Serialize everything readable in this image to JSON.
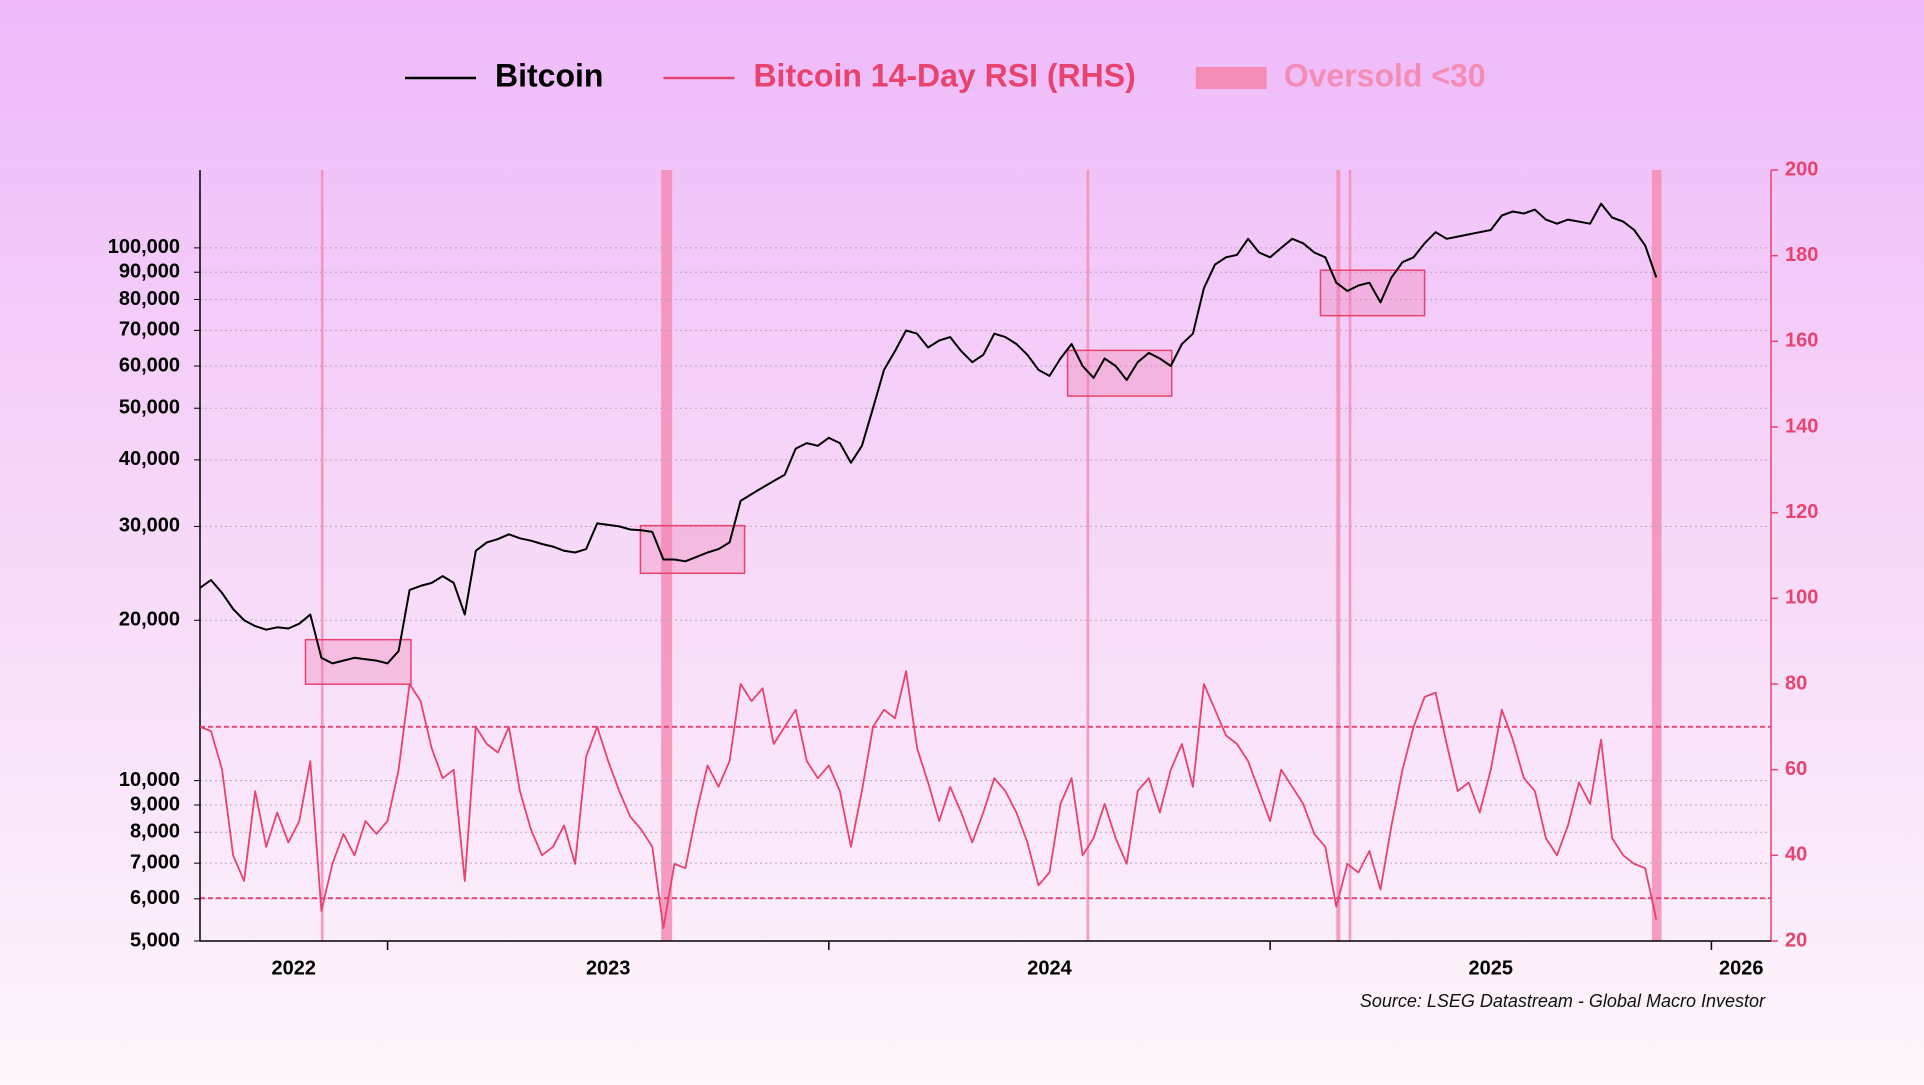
{
  "chart_data": {
    "type": "line",
    "x": [
      2022.575,
      2022.6,
      2022.625,
      2022.65,
      2022.675,
      2022.7,
      2022.725,
      2022.75,
      2022.775,
      2022.8,
      2022.825,
      2022.85,
      2022.875,
      2022.9,
      2022.925,
      2022.95,
      2022.975,
      2023,
      2023.025,
      2023.05,
      2023.075,
      2023.1,
      2023.125,
      2023.15,
      2023.175,
      2023.2,
      2023.225,
      2023.25,
      2023.275,
      2023.3,
      2023.325,
      2023.35,
      2023.375,
      2023.4,
      2023.425,
      2023.45,
      2023.475,
      2023.5,
      2023.525,
      2023.55,
      2023.575,
      2023.6,
      2023.625,
      2023.65,
      2023.675,
      2023.7,
      2023.725,
      2023.75,
      2023.775,
      2023.8,
      2023.825,
      2023.85,
      2023.875,
      2023.9,
      2023.925,
      2023.95,
      2023.975,
      2024,
      2024.025,
      2024.05,
      2024.075,
      2024.1,
      2024.125,
      2024.15,
      2024.175,
      2024.2,
      2024.225,
      2024.25,
      2024.275,
      2024.3,
      2024.325,
      2024.35,
      2024.375,
      2024.4,
      2024.425,
      2024.45,
      2024.475,
      2024.5,
      2024.525,
      2024.55,
      2024.575,
      2024.6,
      2024.625,
      2024.65,
      2024.675,
      2024.7,
      2024.725,
      2024.75,
      2024.775,
      2024.8,
      2024.825,
      2024.85,
      2024.875,
      2024.9,
      2024.925,
      2024.95,
      2024.975,
      2025,
      2025.025,
      2025.05,
      2025.075,
      2025.1,
      2025.125,
      2025.15,
      2025.175,
      2025.2,
      2025.225,
      2025.25,
      2025.275,
      2025.3,
      2025.325,
      2025.35,
      2025.375,
      2025.4,
      2025.425,
      2025.45,
      2025.475,
      2025.5,
      2025.525,
      2025.55,
      2025.575,
      2025.6,
      2025.625,
      2025.65,
      2025.675,
      2025.7,
      2025.725,
      2025.75,
      2025.775,
      2025.8,
      2025.825,
      2025.85,
      2025.875
    ],
    "series": [
      {
        "name": "Bitcoin",
        "color": "#000000",
        "axis": "y",
        "values": [
          23000,
          23800,
          22500,
          21000,
          20000,
          19500,
          19200,
          19400,
          19300,
          19700,
          20500,
          17000,
          16600,
          16800,
          17000,
          16900,
          16800,
          16600,
          17500,
          22800,
          23200,
          23500,
          24200,
          23500,
          20500,
          27000,
          28000,
          28400,
          29000,
          28500,
          28200,
          27800,
          27500,
          27000,
          26800,
          27200,
          30400,
          30200,
          30000,
          29600,
          29500,
          29300,
          26000,
          26000,
          25800,
          26300,
          26800,
          27200,
          28000,
          33500,
          34500,
          35500,
          36500,
          37500,
          42000,
          43000,
          42500,
          44000,
          43000,
          39500,
          42500,
          50000,
          59000,
          64000,
          70000,
          69000,
          65000,
          67000,
          68000,
          64000,
          61000,
          63000,
          69000,
          68000,
          66000,
          63000,
          59000,
          57500,
          62000,
          66000,
          60000,
          57000,
          62000,
          60000,
          56500,
          61000,
          63500,
          62000,
          60000,
          66000,
          69000,
          84000,
          93000,
          96000,
          97000,
          104000,
          98000,
          96000,
          100000,
          104000,
          102000,
          98000,
          96000,
          86000,
          83000,
          85000,
          86000,
          79000,
          88000,
          94000,
          96000,
          102000,
          107000,
          104000,
          105000,
          106000,
          107000,
          108000,
          115000,
          117000,
          116000,
          118000,
          113000,
          111000,
          113000,
          112000,
          111000,
          121000,
          114000,
          112000,
          108000,
          101000,
          88000
        ]
      },
      {
        "name": "Bitcoin 14-Day RSI (RHS)",
        "color": "#e8436f",
        "axis": "y2",
        "values": [
          70,
          69,
          60,
          40,
          34,
          55,
          42,
          50,
          43,
          48,
          62,
          27,
          38,
          45,
          40,
          48,
          45,
          48,
          60,
          80,
          76,
          65,
          58,
          60,
          34,
          70,
          66,
          64,
          70,
          55,
          46,
          40,
          42,
          47,
          38,
          63,
          70,
          62,
          55,
          49,
          46,
          42,
          23,
          38,
          37,
          50,
          61,
          56,
          62,
          80,
          76,
          79,
          66,
          70,
          74,
          62,
          58,
          61,
          55,
          42,
          55,
          70,
          74,
          72,
          83,
          65,
          57,
          48,
          56,
          50,
          43,
          50,
          58,
          55,
          50,
          43,
          33,
          36,
          52,
          58,
          40,
          44,
          52,
          44,
          38,
          55,
          58,
          50,
          60,
          66,
          56,
          80,
          74,
          68,
          66,
          62,
          55,
          48,
          60,
          56,
          52,
          45,
          42,
          28,
          38,
          36,
          41,
          32,
          47,
          60,
          70,
          77,
          78,
          66,
          55,
          57,
          50,
          60,
          74,
          67,
          58,
          55,
          44,
          40,
          47,
          57,
          52,
          67,
          44,
          40,
          38,
          37,
          25
        ]
      }
    ],
    "oversold": {
      "name": "Oversold <30",
      "color": "#f48db6",
      "ranges": [
        [
          2022.849,
          2022.855
        ],
        [
          2023.62,
          2023.645
        ],
        [
          2024.584,
          2024.59
        ],
        [
          2025.15,
          2025.159
        ],
        [
          2025.178,
          2025.184
        ],
        [
          2025.865,
          2025.887
        ]
      ]
    },
    "reference_lines": {
      "axis": "y2",
      "color": "#e8436f",
      "values": [
        70,
        30
      ]
    },
    "boxes": [
      {
        "x": [
          2022.814,
          2023.053
        ],
        "y": [
          15170,
          18390
        ]
      },
      {
        "x": [
          2023.573,
          2023.809
        ],
        "y": [
          24500,
          30100
        ]
      },
      {
        "x": [
          2024.541,
          2024.777
        ],
        "y": [
          52700,
          64200
        ]
      },
      {
        "x": [
          2025.114,
          2025.35
        ],
        "y": [
          74600,
          90800
        ]
      }
    ],
    "xlim": [
      2022.575,
      2026.135
    ],
    "xticks": [
      2023,
      2024,
      2025,
      2026
    ],
    "xtick_labels": [
      2022,
      2023,
      2024,
      2025,
      2026
    ],
    "ylim": [
      5000,
      140000
    ],
    "log_y": true,
    "yticks": [
      {
        "value": 5000,
        "label": "5,000"
      },
      {
        "value": 6000,
        "label": "6,000"
      },
      {
        "value": 7000,
        "label": "7,000"
      },
      {
        "value": 8000,
        "label": "8,000"
      },
      {
        "value": 9000,
        "label": "9,000"
      },
      {
        "value": 10000,
        "label": "10,000"
      },
      {
        "value": 20000,
        "label": "20,000"
      },
      {
        "value": 30000,
        "label": "30,000"
      },
      {
        "value": 40000,
        "label": "40,000"
      },
      {
        "value": 50000,
        "label": "50,000"
      },
      {
        "value": 60000,
        "label": "60,000"
      },
      {
        "value": 70000,
        "label": "70,000"
      },
      {
        "value": 80000,
        "label": "80,000"
      },
      {
        "value": 90000,
        "label": "90,000"
      },
      {
        "value": 100000,
        "label": "100,000"
      }
    ],
    "y2lim": [
      20,
      200
    ],
    "y2ticks": [
      20,
      40,
      60,
      80,
      100,
      120,
      140,
      160,
      180,
      200
    ],
    "y2_color": "#e8436f",
    "grid": true,
    "legend": "top",
    "source": "Source: LSEG Datastream - Global Macro Investor"
  }
}
